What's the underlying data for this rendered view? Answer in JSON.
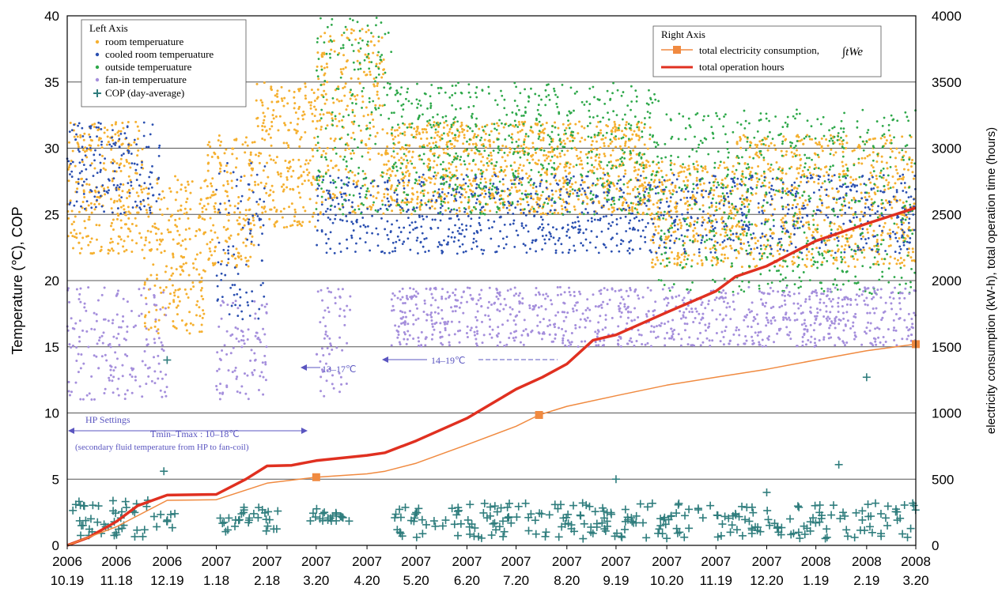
{
  "chart_data": {
    "type": "scatter",
    "left_axis": {
      "title": "Temperature (℃), COP",
      "ylim": [
        0,
        40
      ],
      "ticks": [
        "0",
        "5",
        "10",
        "15",
        "20",
        "25",
        "30",
        "35",
        "40"
      ]
    },
    "right_axis": {
      "title": "electricity consumption (kW-h), total operation time (hours)",
      "ylim": [
        0,
        4000
      ],
      "ticks": [
        "0",
        "500",
        "1000",
        "1500",
        "2000",
        "2500",
        "3000",
        "3500",
        "4000"
      ]
    },
    "x_axis": {
      "range": [
        "2006-10-19",
        "2008-03-20"
      ],
      "tick_labels": [
        {
          "year": "2006",
          "date": "10.19",
          "x": "2006-10-19"
        },
        {
          "year": "2006",
          "date": "11.18",
          "x": "2006-11-18"
        },
        {
          "year": "2006",
          "date": "12.19",
          "x": "2006-12-19"
        },
        {
          "year": "2007",
          "date": "1.18",
          "x": "2007-01-18"
        },
        {
          "year": "2007",
          "date": "2.18",
          "x": "2007-02-18"
        },
        {
          "year": "2007",
          "date": "3.20",
          "x": "2007-03-20"
        },
        {
          "year": "2007",
          "date": "4.20",
          "x": "2007-04-20"
        },
        {
          "year": "2007",
          "date": "5.20",
          "x": "2007-05-20"
        },
        {
          "year": "2007",
          "date": "6.20",
          "x": "2007-06-20"
        },
        {
          "year": "2007",
          "date": "7.20",
          "x": "2007-07-20"
        },
        {
          "year": "2007",
          "date": "8.20",
          "x": "2007-08-20"
        },
        {
          "year": "2007",
          "date": "9.19",
          "x": "2007-09-19"
        },
        {
          "year": "2007",
          "date": "10.20",
          "x": "2007-10-20"
        },
        {
          "year": "2007",
          "date": "11.19",
          "x": "2007-11-19"
        },
        {
          "year": "2007",
          "date": "12.20",
          "x": "2007-12-20"
        },
        {
          "year": "2008",
          "date": "1.19",
          "x": "2008-01-19"
        },
        {
          "year": "2008",
          "date": "2.19",
          "x": "2008-02-19"
        },
        {
          "year": "2008",
          "date": "3.20",
          "x": "2008-03-20"
        }
      ]
    },
    "grid": "horizontal",
    "left_legend": {
      "title": "Left Axis",
      "placement": "top-left",
      "items": [
        {
          "label": "room temperuature",
          "color": "#f5b030",
          "marker": "dot"
        },
        {
          "label": "cooled room temperuature",
          "color": "#2a4fb0",
          "marker": "dot"
        },
        {
          "label": "outside temperuature",
          "color": "#2ea84a",
          "marker": "dot"
        },
        {
          "label": "fan-in temperuature",
          "color": "#a58fdc",
          "marker": "dot"
        },
        {
          "label": "COP (day-average)",
          "color": "#2f7d7d",
          "marker": "plus"
        }
      ]
    },
    "right_legend": {
      "title": "Right Axis",
      "placement": "top-right",
      "items": [
        {
          "label": "total electricity consumption,",
          "formula": "∫tWe",
          "color": "#f08a40",
          "marker": "square-line"
        },
        {
          "label": "total operation hours",
          "color": "#e03020",
          "marker": "line"
        }
      ]
    },
    "annotations": {
      "hp_settings": "HP Settings",
      "tmin_tmax": "Tmin–Tmax : 10–18℃",
      "secondary_note": "(secondary fluid temperature from HP to fan-coil)",
      "range_13_17": "13–17℃",
      "range_14_19": "14–19℃"
    },
    "series": [
      {
        "name": "total operation hours",
        "axis": "right",
        "style": "line",
        "color": "#e03020",
        "points": [
          [
            "2006-10-19",
            0
          ],
          [
            "2006-11-01",
            60
          ],
          [
            "2006-11-18",
            180
          ],
          [
            "2006-12-01",
            300
          ],
          [
            "2006-12-19",
            380
          ],
          [
            "2007-01-18",
            385
          ],
          [
            "2007-02-05",
            500
          ],
          [
            "2007-02-18",
            600
          ],
          [
            "2007-03-05",
            605
          ],
          [
            "2007-03-20",
            640
          ],
          [
            "2007-04-20",
            680
          ],
          [
            "2007-05-01",
            700
          ],
          [
            "2007-05-20",
            790
          ],
          [
            "2007-06-20",
            960
          ],
          [
            "2007-07-20",
            1180
          ],
          [
            "2007-08-05",
            1270
          ],
          [
            "2007-08-20",
            1370
          ],
          [
            "2007-09-05",
            1550
          ],
          [
            "2007-09-19",
            1590
          ],
          [
            "2007-10-20",
            1760
          ],
          [
            "2007-11-19",
            1920
          ],
          [
            "2007-12-01",
            2030
          ],
          [
            "2007-12-20",
            2110
          ],
          [
            "2008-01-19",
            2300
          ],
          [
            "2008-02-19",
            2430
          ],
          [
            "2008-03-20",
            2550
          ]
        ]
      },
      {
        "name": "total electricity consumption",
        "axis": "right",
        "style": "line-with-markers",
        "color": "#f08a40",
        "points": [
          [
            "2006-10-19",
            0
          ],
          [
            "2006-11-18",
            140
          ],
          [
            "2006-12-19",
            340
          ],
          [
            "2007-01-18",
            345
          ],
          [
            "2007-02-18",
            470
          ],
          [
            "2007-03-20",
            515
          ],
          [
            "2007-04-20",
            540
          ],
          [
            "2007-05-01",
            560
          ],
          [
            "2007-05-20",
            620
          ],
          [
            "2007-06-20",
            760
          ],
          [
            "2007-07-20",
            900
          ],
          [
            "2007-08-03",
            985
          ],
          [
            "2007-08-20",
            1050
          ],
          [
            "2007-09-19",
            1130
          ],
          [
            "2007-10-20",
            1210
          ],
          [
            "2007-11-19",
            1270
          ],
          [
            "2007-12-20",
            1330
          ],
          [
            "2008-01-19",
            1400
          ],
          [
            "2008-02-19",
            1470
          ],
          [
            "2008-03-20",
            1520
          ]
        ],
        "marker_points": [
          [
            "2007-03-20",
            515
          ],
          [
            "2007-08-03",
            985
          ],
          [
            "2008-03-20",
            1520
          ]
        ]
      }
    ]
  }
}
